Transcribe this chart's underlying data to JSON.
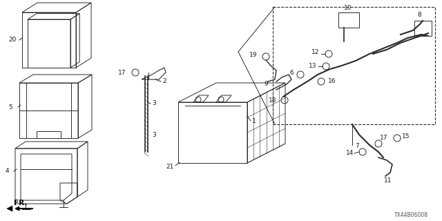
{
  "background_color": "#ffffff",
  "line_color": "#2a2a2a",
  "label_color": "#1a1a1a",
  "font_size": 6.5,
  "diagram_code": "TX44B06008",
  "figsize": [
    6.4,
    3.2
  ],
  "dpi": 100
}
